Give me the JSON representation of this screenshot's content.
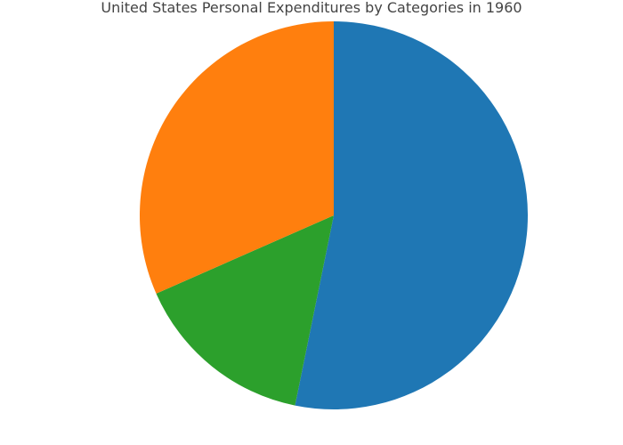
{
  "chart_data": {
    "type": "pie",
    "title": "United States Personal Expenditures by Categories in 1960",
    "start_angle_deg": 90,
    "direction": "clockwise",
    "slices": [
      {
        "value": 53.2,
        "color": "#1f77b4"
      },
      {
        "value": 15.2,
        "color": "#2ca02c"
      },
      {
        "value": 31.6,
        "color": "#ff7f0e"
      }
    ]
  }
}
